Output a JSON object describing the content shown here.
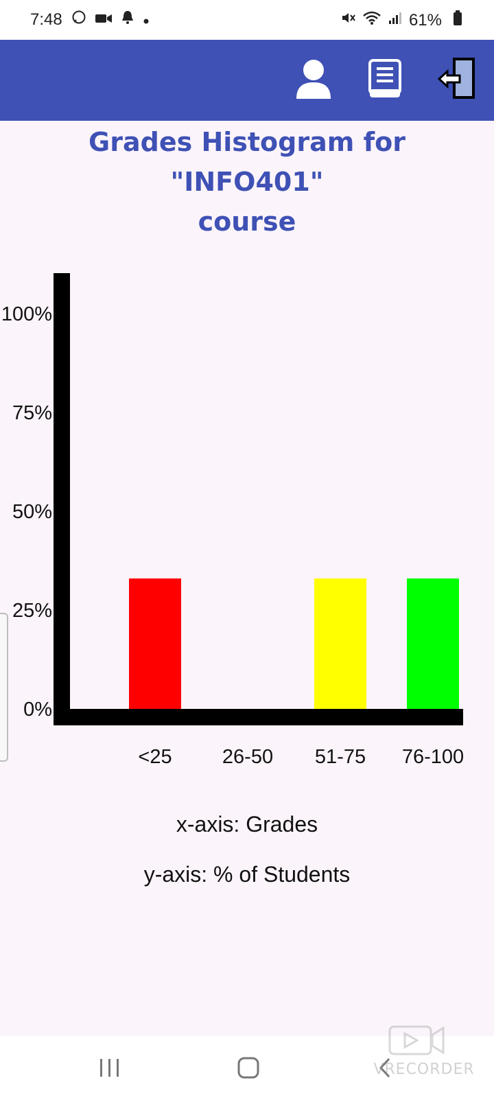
{
  "status_bar": {
    "time": "7:48",
    "battery_text": "61%",
    "icons": [
      "whatsapp-icon",
      "video-camera-icon",
      "notification-bell-icon",
      "dot-icon",
      "mute-icon",
      "wifi-icon",
      "signal-icon",
      "battery-icon"
    ]
  },
  "app_bar": {
    "accent_color": "#3f51b5",
    "actions": [
      "profile-icon",
      "book-icon",
      "logout-icon"
    ]
  },
  "page": {
    "title_line1": "Grades Histogram for \"INFO401\"",
    "title_line2": "course"
  },
  "chart_data": {
    "type": "bar",
    "categories": [
      "<25",
      "26-50",
      "51-75",
      "76-100"
    ],
    "values": [
      33,
      0,
      33,
      33
    ],
    "bar_colors": [
      "#ff0000",
      "#ff0000",
      "#ffff00",
      "#00ff00"
    ],
    "y_ticks": [
      "0%",
      "25%",
      "50%",
      "75%",
      "100%"
    ],
    "ylim": [
      0,
      100
    ],
    "xlabel": "x-axis: Grades",
    "ylabel": "y-axis: % of Students"
  },
  "nav_bar": {
    "buttons": [
      "recent-apps-icon",
      "home-icon",
      "back-icon"
    ]
  },
  "watermark": {
    "text": "VRECORDER"
  }
}
